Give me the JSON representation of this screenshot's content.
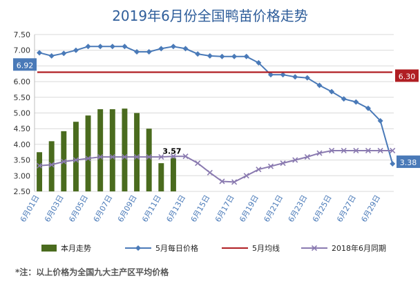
{
  "chart_data": {
    "type": "bar+line",
    "title": "2019年6月份全国鸭苗价格走势",
    "footnote": "*注：以上价格为全国九大主产区平均价格",
    "ylim": [
      2.5,
      7.5
    ],
    "yticks": [
      "2.50",
      "3.00",
      "3.50",
      "4.00",
      "4.50",
      "5.00",
      "5.50",
      "6.00",
      "6.50",
      "7.00",
      "7.50"
    ],
    "categories": [
      "6月01日",
      "6月02日",
      "6月03日",
      "6月04日",
      "6月05日",
      "6月06日",
      "6月07日",
      "6月08日",
      "6月09日",
      "6月10日",
      "6月11日",
      "6月12日",
      "6月13日",
      "6月14日",
      "6月15日",
      "6月16日",
      "6月17日",
      "6月18日",
      "6月19日",
      "6月20日",
      "6月21日",
      "6月22日",
      "6月23日",
      "6月24日",
      "6月25日",
      "6月26日",
      "6月27日",
      "6月28日",
      "6月29日",
      "6月30日"
    ],
    "xtick_labels": [
      "6月01日",
      "6月03日",
      "6月05日",
      "6月07日",
      "6月09日",
      "6月11日",
      "6月13日",
      "6月15日",
      "6月17日",
      "6月19日",
      "6月21日",
      "6月23日",
      "6月25日",
      "6月27日",
      "6月29日"
    ],
    "series": [
      {
        "name": "本月走势",
        "kind": "bar",
        "color": "#4a6b1e",
        "values": [
          3.75,
          4.1,
          4.42,
          4.72,
          4.92,
          5.12,
          5.12,
          5.14,
          5.0,
          4.5,
          3.4,
          3.57,
          null,
          null,
          null,
          null,
          null,
          null,
          null,
          null,
          null,
          null,
          null,
          null,
          null,
          null,
          null,
          null,
          null,
          null
        ]
      },
      {
        "name": "5月每日价格",
        "kind": "line",
        "color": "#4a7ab8",
        "values": [
          6.92,
          6.82,
          6.9,
          7.0,
          7.12,
          7.12,
          7.12,
          7.12,
          6.95,
          6.95,
          7.05,
          7.12,
          7.05,
          6.88,
          6.82,
          6.8,
          6.8,
          6.8,
          6.6,
          6.22,
          6.22,
          6.15,
          6.12,
          5.88,
          5.68,
          5.45,
          5.35,
          5.15,
          4.75,
          3.38
        ]
      },
      {
        "name": "5月均线",
        "kind": "line",
        "color": "#b01e23",
        "values": [
          6.3,
          6.3,
          6.3,
          6.3,
          6.3,
          6.3,
          6.3,
          6.3,
          6.3,
          6.3,
          6.3,
          6.3,
          6.3,
          6.3,
          6.3,
          6.3,
          6.3,
          6.3,
          6.3,
          6.3,
          6.3,
          6.3,
          6.3,
          6.3,
          6.3,
          6.3,
          6.3,
          6.3,
          6.3,
          6.3
        ]
      },
      {
        "name": "2018年6月同期",
        "kind": "line",
        "color": "#8a7ab0",
        "values": [
          3.32,
          3.35,
          3.45,
          3.5,
          3.55,
          3.6,
          3.6,
          3.6,
          3.6,
          3.6,
          3.6,
          3.62,
          3.62,
          3.4,
          3.1,
          2.82,
          2.8,
          3.0,
          3.2,
          3.3,
          3.4,
          3.5,
          3.6,
          3.72,
          3.8,
          3.8,
          3.8,
          3.8,
          3.8,
          3.8
        ]
      }
    ],
    "callouts": [
      {
        "text": "6.92",
        "color": "#4a7ab8"
      },
      {
        "text": "6.30",
        "color": "#b01e23"
      },
      {
        "text": "3.38",
        "color": "#4a7ab8"
      },
      {
        "text": "3.57",
        "color": "#000000"
      }
    ],
    "grid": true,
    "legend_position": "bottom"
  }
}
